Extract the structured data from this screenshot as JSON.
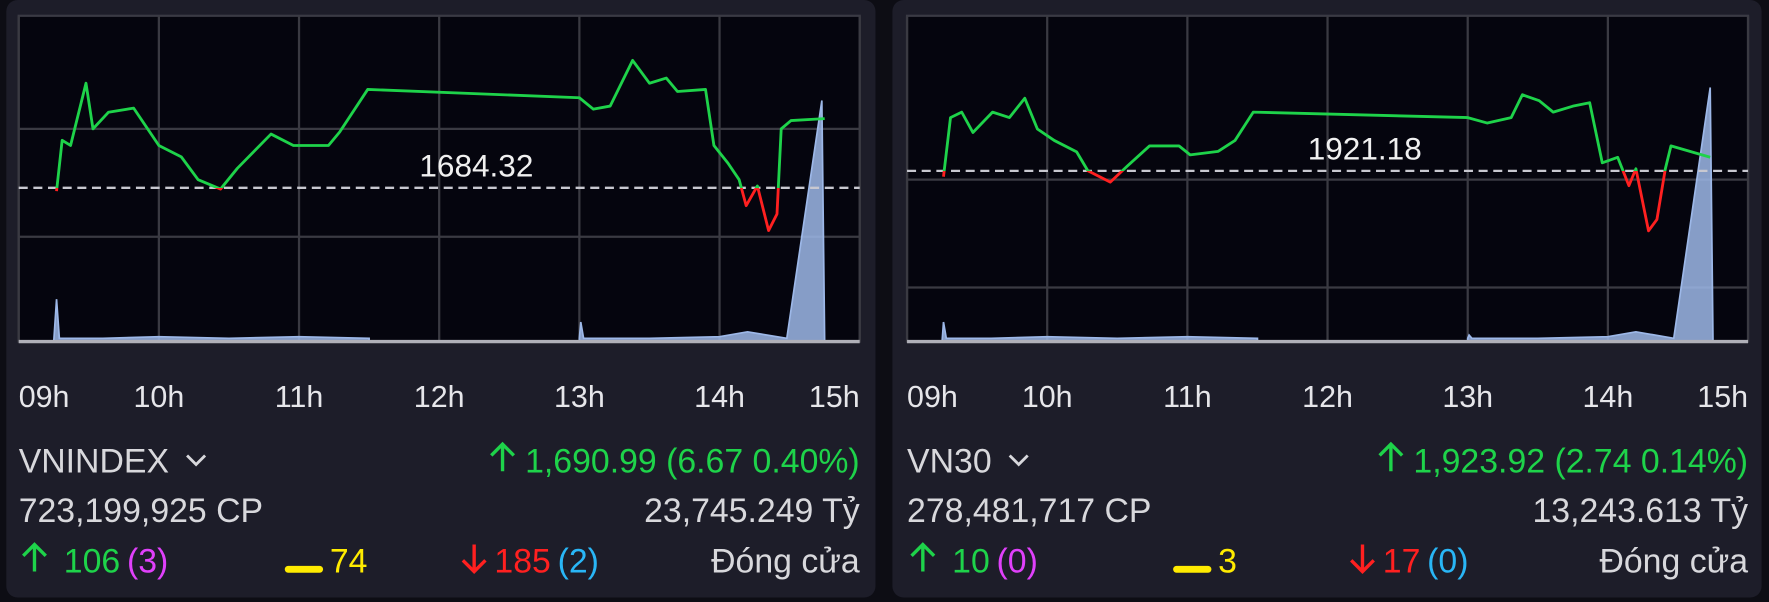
{
  "chart_data": [
    {
      "type": "line",
      "xlim": [
        9,
        15
      ],
      "ylim": [
        1669.5,
        1700.9
      ],
      "xticks": [
        {
          "value": 9,
          "label": "09h"
        },
        {
          "value": 10,
          "label": "10h"
        },
        {
          "value": 11,
          "label": "11h"
        },
        {
          "value": 12,
          "label": "12h"
        },
        {
          "value": 13,
          "label": "13h"
        },
        {
          "value": 14,
          "label": "14h"
        },
        {
          "value": 15,
          "label": "15h"
        }
      ],
      "yticks": [
        1679.6,
        1690.0
      ],
      "grid": true,
      "reference": 1684.32,
      "x": [
        9.27,
        9.31,
        9.37,
        9.48,
        9.53,
        9.64,
        9.82,
        10.0,
        10.16,
        10.28,
        10.44,
        10.56,
        10.8,
        10.96,
        11.21,
        11.29,
        11.49,
        13.0,
        13.1,
        13.22,
        13.38,
        13.5,
        13.62,
        13.7,
        13.9,
        13.96,
        14.06,
        14.14,
        14.19,
        14.27,
        14.35,
        14.41,
        14.44,
        14.51,
        14.75
      ],
      "series": [
        {
          "color": "#1ed34a",
          "below_color": "#ff2020",
          "values": [
            1684.0,
            1688.9,
            1688.4,
            1694.4,
            1690.0,
            1691.6,
            1692.0,
            1688.4,
            1687.3,
            1685.1,
            1684.2,
            1686.2,
            1689.5,
            1688.4,
            1688.4,
            1689.7,
            1693.8,
            1693.0,
            1691.9,
            1692.2,
            1696.6,
            1694.4,
            1694.9,
            1693.6,
            1693.8,
            1688.4,
            1686.7,
            1685.1,
            1682.6,
            1684.5,
            1680.2,
            1681.8,
            1690.0,
            1690.8,
            1690.99
          ]
        },
        {
          "axis": "y2",
          "color": "#9db8e8",
          "x": [
            9.25,
            9.27,
            9.29,
            9.6,
            10,
            10.5,
            11,
            11.5,
            12.25,
            13,
            13.01,
            13.03,
            13.5,
            14,
            14.2,
            14.48,
            14.73,
            14.75
          ],
          "values": [
            0,
            13,
            1,
            1,
            1.5,
            1,
            1.5,
            1,
            null,
            1,
            6,
            1,
            1,
            1.5,
            3,
            1,
            74,
            0
          ]
        }
      ],
      "y2lim": [
        0,
        100
      ]
    },
    {
      "type": "line",
      "xlim": [
        9,
        15
      ],
      "ylim": [
        1886.8,
        1952.4
      ],
      "xticks": [
        {
          "value": 9,
          "label": "09h"
        },
        {
          "value": 10,
          "label": "10h"
        },
        {
          "value": 11,
          "label": "11h"
        },
        {
          "value": 12,
          "label": "12h"
        },
        {
          "value": 13,
          "label": "13h"
        },
        {
          "value": 14,
          "label": "14h"
        },
        {
          "value": 15,
          "label": "15h"
        }
      ],
      "yticks": [
        1897.7,
        1919.4
      ],
      "grid": true,
      "reference": 1921.18,
      "x": [
        9.26,
        9.31,
        9.39,
        9.47,
        9.61,
        9.73,
        9.84,
        9.93,
        10.05,
        10.21,
        10.29,
        10.45,
        10.57,
        10.73,
        10.94,
        11.02,
        11.22,
        11.34,
        11.47,
        13.0,
        13.14,
        13.31,
        13.39,
        13.51,
        13.61,
        13.75,
        13.87,
        13.96,
        14.07,
        14.15,
        14.2,
        14.29,
        14.35,
        14.41,
        14.45,
        14.73
      ],
      "series": [
        {
          "color": "#1ed34a",
          "below_color": "#ff2020",
          "values": [
            1920.0,
            1931.9,
            1933.0,
            1928.9,
            1933.0,
            1931.9,
            1935.8,
            1929.6,
            1927.3,
            1925.0,
            1921.2,
            1918.9,
            1922.1,
            1926.2,
            1926.2,
            1924.4,
            1925.1,
            1927.3,
            1933.0,
            1931.9,
            1930.8,
            1931.9,
            1936.5,
            1935.3,
            1933.0,
            1934.2,
            1934.9,
            1922.8,
            1923.9,
            1918.2,
            1921.6,
            1909.1,
            1911.4,
            1921.6,
            1926.2,
            1923.92
          ]
        },
        {
          "axis": "y2",
          "color": "#9db8e8",
          "x": [
            9.25,
            9.26,
            9.28,
            9.6,
            10,
            10.5,
            11,
            11.5,
            12.25,
            13,
            13.01,
            13.03,
            13.5,
            14,
            14.2,
            14.47,
            14.73,
            14.75
          ],
          "values": [
            0,
            6,
            1,
            1,
            1.5,
            1,
            1.5,
            1,
            null,
            1,
            2,
            1,
            1,
            1.5,
            3,
            1,
            78,
            0
          ]
        }
      ],
      "y2lim": [
        0,
        100
      ]
    }
  ],
  "panels": [
    {
      "name": "VNINDEX",
      "change": "1,690.99 (6.67 0.40%)",
      "volume": "723,199,925 CP",
      "value": "23,745.249 Tỷ",
      "advances": 106,
      "advances_ceiling": "(3)",
      "unchanged": 74,
      "declines": 185,
      "declines_floor": "(2)",
      "status": "Đóng cửa"
    },
    {
      "name": "VN30",
      "change": "1,923.92 (2.74 0.14%)",
      "volume": "278,481,717 CP",
      "value": "13,243.613 Tỷ",
      "advances": 10,
      "advances_ceiling": "(0)",
      "unchanged": 3,
      "declines": 17,
      "declines_floor": "(0)",
      "status": "Đóng cửa"
    }
  ]
}
